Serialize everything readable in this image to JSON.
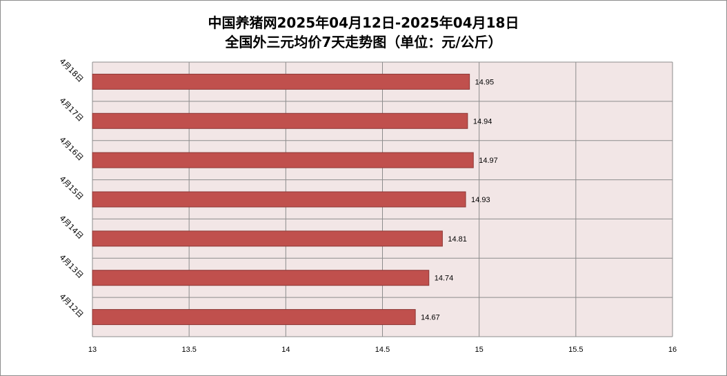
{
  "chart_data": {
    "type": "bar",
    "orientation": "horizontal",
    "title": "中国养猪网2025年04月12日-2025年04月18日",
    "subtitle": "全国外三元均价7天走势图（单位：元/公斤）",
    "categories": [
      "4月18日",
      "4月17日",
      "4月16日",
      "4月15日",
      "4月14日",
      "4月13日",
      "4月12日"
    ],
    "values": [
      14.95,
      14.94,
      14.97,
      14.93,
      14.81,
      14.74,
      14.67
    ],
    "data_labels": [
      "14.95",
      "14.94",
      "14.97",
      "14.93",
      "14.81",
      "14.74",
      "14.67"
    ],
    "xlim": [
      13,
      16
    ],
    "x_ticks": [
      "13",
      "13.5",
      "14",
      "14.5",
      "15",
      "15.5",
      "16"
    ],
    "xlabel": "",
    "ylabel": "",
    "grid": true,
    "legend": "none",
    "colors": {
      "bar_fill": "#c0504d",
      "bar_stroke": "#8c3836",
      "plot_background": "#f2e6e6",
      "gridline": "#8c8c8c"
    }
  }
}
